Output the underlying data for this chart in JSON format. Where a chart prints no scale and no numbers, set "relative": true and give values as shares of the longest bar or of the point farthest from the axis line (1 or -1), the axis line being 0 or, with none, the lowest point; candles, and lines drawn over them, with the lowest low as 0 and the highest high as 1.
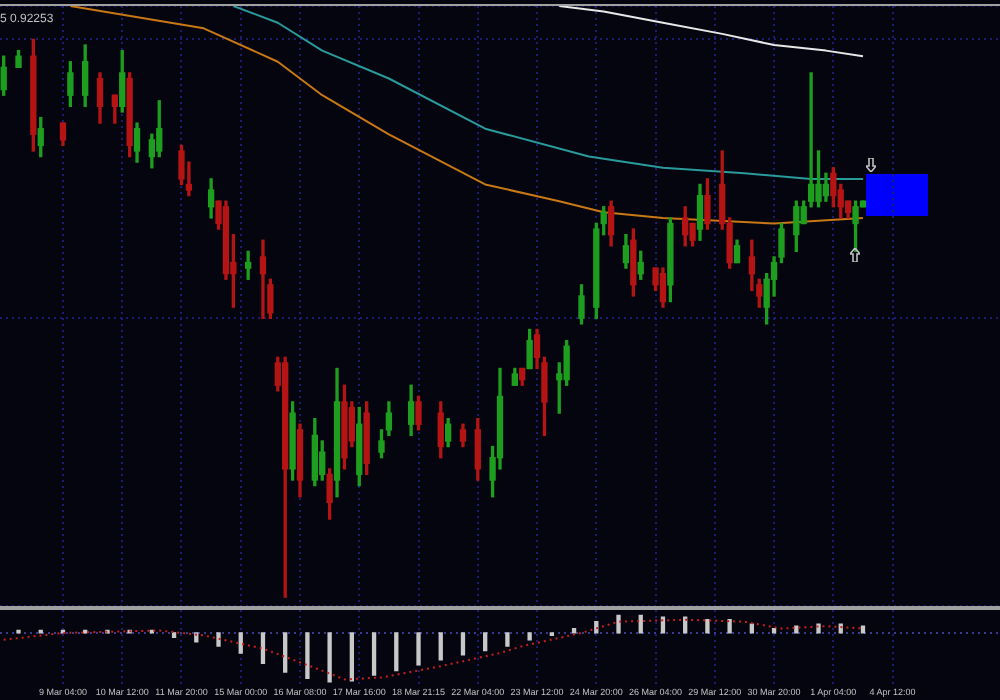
{
  "chart_data": [
    {
      "type": "candlestick",
      "relative": true,
      "tick_labels": false,
      "grid": true,
      "annotations": [
        "5 0.92253"
      ],
      "categories": [
        null,
        null,
        null,
        null,
        null,
        null,
        null,
        null,
        null,
        null,
        null,
        null,
        null,
        null,
        null,
        null,
        null,
        null,
        null,
        null,
        null,
        null,
        null,
        null,
        null,
        null,
        null,
        null,
        null,
        null,
        null,
        null,
        null,
        null,
        null,
        null,
        null,
        null,
        null,
        null,
        null,
        null,
        null,
        null,
        null,
        null,
        null,
        null,
        null,
        null,
        null,
        null,
        null,
        null,
        null,
        null,
        null,
        null,
        null,
        null,
        null,
        null,
        null,
        null,
        null,
        null,
        null,
        null,
        null,
        null,
        null,
        null,
        null,
        null,
        null,
        null,
        null,
        null,
        null,
        null,
        null,
        null,
        null,
        null,
        null,
        null,
        null,
        null,
        null,
        null,
        null,
        null,
        null,
        null,
        null,
        null,
        null,
        null,
        null,
        null,
        null,
        null,
        null,
        null,
        null,
        null,
        null,
        null,
        null,
        null,
        null,
        null,
        null,
        null,
        null,
        null,
        null,
        null,
        null,
        null,
        null,
        null,
        null,
        null,
        null,
        null,
        null,
        null,
        null,
        null,
        null,
        null,
        null,
        null,
        null
      ],
      "ohlc": [
        [
          0.91,
          0.97,
          0.9,
          0.95
        ],
        null,
        [
          0.95,
          0.98,
          0.95,
          0.97
        ],
        null,
        [
          0.97,
          1,
          0.8,
          0.83
        ],
        [
          0.81,
          0.86,
          0.79,
          0.84
        ],
        null,
        null,
        [
          0.85,
          0.85,
          0.81,
          0.82
        ],
        [
          0.9,
          0.96,
          0.88,
          0.94
        ],
        null,
        [
          0.9,
          0.99,
          0.88,
          0.96
        ],
        null,
        [
          0.93,
          0.94,
          0.85,
          0.88
        ],
        null,
        [
          0.9,
          0.9,
          0.85,
          0.88
        ],
        [
          0.88,
          0.98,
          0.87,
          0.94
        ],
        [
          0.93,
          0.94,
          0.79,
          0.81
        ],
        [
          0.8,
          0.85,
          0.78,
          0.84
        ],
        null,
        [
          0.79,
          0.83,
          0.77,
          0.82
        ],
        [
          0.8,
          0.89,
          0.79,
          0.84
        ],
        null,
        null,
        [
          0.8,
          0.81,
          0.74,
          0.75
        ],
        [
          0.74,
          0.78,
          0.72,
          0.73
        ],
        null,
        null,
        [
          0.7,
          0.75,
          0.68,
          0.73
        ],
        [
          0.71,
          0.71,
          0.66,
          0.67
        ],
        [
          0.7,
          0.71,
          0.57,
          0.58
        ],
        [
          0.6,
          0.65,
          0.52,
          0.58
        ],
        null,
        [
          0.59,
          0.62,
          0.57,
          0.6
        ],
        null,
        [
          0.61,
          0.64,
          0.5,
          0.58
        ],
        [
          0.56,
          0.57,
          0.5,
          0.51
        ],
        [
          0.42,
          0.43,
          0.37,
          0.38
        ],
        [
          0.42,
          0.43,
          0,
          0.23
        ],
        [
          0.23,
          0.35,
          0.21,
          0.33
        ],
        [
          0.3,
          0.31,
          0.18,
          0.21
        ],
        null,
        [
          0.21,
          0.32,
          0.2,
          0.29
        ],
        [
          0.22,
          0.28,
          0.21,
          0.26
        ],
        [
          0.22,
          0.23,
          0.14,
          0.17
        ],
        [
          0.21,
          0.41,
          0.18,
          0.35
        ],
        [
          0.35,
          0.38,
          0.23,
          0.25
        ],
        [
          0.34,
          0.35,
          0.27,
          0.28
        ],
        [
          0.22,
          0.34,
          0.2,
          0.31
        ],
        [
          0.33,
          0.35,
          0.22,
          0.24
        ],
        null,
        [
          0.26,
          0.3,
          0.25,
          0.28
        ],
        [
          0.3,
          0.35,
          0.29,
          0.33
        ],
        null,
        null,
        [
          0.31,
          0.38,
          0.29,
          0.35
        ],
        [
          0.35,
          0.36,
          0.3,
          0.31
        ],
        null,
        null,
        [
          0.33,
          0.35,
          0.25,
          0.27
        ],
        [
          0.28,
          0.32,
          0.27,
          0.31
        ],
        null,
        [
          0.3,
          0.31,
          0.27,
          0.28
        ],
        null,
        [
          0.3,
          0.32,
          0.21,
          0.23
        ],
        null,
        [
          0.21,
          0.27,
          0.18,
          0.25
        ],
        [
          0.25,
          0.41,
          0.23,
          0.36
        ],
        null,
        [
          0.38,
          0.41,
          0.38,
          0.4
        ],
        [
          0.41,
          0.41,
          0.38,
          0.39
        ],
        [
          0.41,
          0.48,
          0.41,
          0.46
        ],
        [
          0.47,
          0.48,
          0.41,
          0.43
        ],
        [
          0.42,
          0.43,
          0.29,
          0.35
        ],
        null,
        [
          0.39,
          0.42,
          0.33,
          0.4
        ],
        [
          0.39,
          0.46,
          0.38,
          0.45
        ],
        null,
        [
          0.5,
          0.56,
          0.49,
          0.54
        ],
        null,
        [
          0.52,
          0.67,
          0.5,
          0.66
        ],
        [
          0.67,
          0.7,
          0.65,
          0.69
        ],
        [
          0.7,
          0.71,
          0.63,
          0.65
        ],
        null,
        [
          0.6,
          0.65,
          0.59,
          0.63
        ],
        [
          0.64,
          0.66,
          0.54,
          0.56
        ],
        [
          0.58,
          0.62,
          0.57,
          0.6
        ],
        null,
        [
          0.59,
          0.59,
          0.55,
          0.56
        ],
        [
          0.58,
          0.59,
          0.52,
          0.53
        ],
        [
          0.56,
          0.68,
          0.53,
          0.67
        ],
        null,
        [
          0.68,
          0.7,
          0.63,
          0.65
        ],
        [
          0.67,
          0.67,
          0.63,
          0.64
        ],
        [
          0.66,
          0.74,
          0.64,
          0.72
        ],
        [
          0.72,
          0.75,
          0.66,
          0.67
        ],
        null,
        [
          0.74,
          0.8,
          0.66,
          0.67
        ],
        [
          0.67,
          0.68,
          0.59,
          0.6
        ],
        [
          0.6,
          0.64,
          0.6,
          0.63
        ],
        null,
        [
          0.61,
          0.64,
          0.55,
          0.58
        ],
        [
          0.56,
          0.57,
          0.52,
          0.54
        ],
        [
          0.52,
          0.58,
          0.49,
          0.57
        ],
        [
          0.57,
          0.61,
          0.54,
          0.6
        ],
        [
          0.61,
          0.67,
          0.6,
          0.66
        ],
        null,
        [
          0.65,
          0.71,
          0.62,
          0.7
        ],
        [
          0.67,
          0.71,
          0.67,
          0.7
        ],
        [
          0.71,
          0.94,
          0.7,
          0.74
        ],
        [
          0.71,
          0.8,
          0.7,
          0.74
        ],
        [
          0.72,
          0.76,
          0.71,
          0.74
        ],
        [
          0.76,
          0.77,
          0.7,
          0.72
        ],
        [
          0.73,
          0.74,
          0.68,
          0.7
        ],
        [
          0.71,
          0.71,
          0.68,
          0.69
        ],
        [
          0.67,
          0.71,
          0.62,
          0.7
        ],
        [
          0.7,
          0.71,
          0.7,
          0.71
        ],
        null,
        null,
        null,
        null,
        null,
        null,
        null,
        null,
        null,
        null,
        null,
        null,
        null,
        null,
        null,
        null,
        null,
        null
      ],
      "colors": [
        "#1e9e1e",
        null,
        "#1e9e1e",
        null,
        "#b41414",
        "#1e9e1e",
        null,
        null,
        "#b41414",
        "#1e9e1e",
        null,
        "#1e9e1e",
        null,
        "#b41414",
        null,
        "#b41414",
        "#1e9e1e",
        "#b41414",
        "#1e9e1e",
        null,
        "#1e9e1e",
        "#1e9e1e",
        null,
        null,
        "#b41414",
        "#b41414",
        null,
        null,
        "#1e9e1e",
        "#b41414",
        "#b41414",
        "#b41414",
        null,
        "#1e9e1e",
        null,
        "#b41414",
        "#b41414",
        "#b41414",
        "#b41414",
        "#1e9e1e",
        "#b41414",
        null,
        "#1e9e1e",
        "#1e9e1e",
        "#b41414",
        "#1e9e1e",
        "#b41414",
        "#b41414",
        "#1e9e1e",
        "#b41414",
        null,
        "#1e9e1e",
        "#1e9e1e",
        null,
        null,
        "#1e9e1e",
        "#b41414",
        null,
        null,
        "#b41414",
        "#1e9e1e",
        null,
        "#b41414",
        null,
        "#b41414",
        null,
        "#1e9e1e",
        "#1e9e1e",
        null,
        "#1e9e1e",
        "#b41414",
        "#1e9e1e",
        "#b41414",
        "#b41414",
        null,
        "#1e9e1e",
        "#1e9e1e",
        null,
        "#1e9e1e",
        null,
        "#1e9e1e",
        "#1e9e1e",
        "#b41414",
        null,
        "#1e9e1e",
        "#b41414",
        "#1e9e1e",
        null,
        "#b41414",
        "#b41414",
        "#1e9e1e",
        null,
        "#b41414",
        "#b41414",
        "#1e9e1e",
        "#b41414",
        null,
        "#b41414",
        "#b41414",
        "#1e9e1e",
        null,
        "#b41414",
        "#b41414",
        "#1e9e1e",
        "#1e9e1e",
        "#1e9e1e",
        null,
        "#1e9e1e",
        "#1e9e1e",
        "#1e9e1e",
        "#1e9e1e",
        "#1e9e1e",
        "#b41414",
        "#b41414",
        "#b41414",
        "#1e9e1e",
        "#1e9e1e",
        null,
        null,
        null,
        null,
        null,
        null,
        null,
        null,
        null,
        null,
        null,
        null,
        null,
        null,
        null,
        null,
        null,
        null
      ],
      "series": [
        {
          "type": "line",
          "color": "#e8e8e8",
          "values": [
            null,
            null,
            null,
            null,
            null,
            null,
            null,
            null,
            null,
            null,
            null,
            null,
            null,
            null,
            null,
            null,
            null,
            null,
            null,
            null,
            null,
            null,
            null,
            null,
            null,
            null,
            null,
            null,
            null,
            null,
            null,
            null,
            null,
            null,
            null,
            null,
            null,
            null,
            null,
            null,
            null,
            null,
            null,
            null,
            null,
            null,
            null,
            null,
            null,
            null,
            null,
            null,
            null,
            null,
            null,
            null,
            null,
            null,
            null,
            null,
            null,
            null,
            null,
            null,
            null,
            null,
            null,
            null,
            null,
            null,
            null,
            null,
            null,
            null,
            null,
            1.06,
            null,
            null,
            null,
            null,
            null,
            1.05,
            null,
            null,
            null,
            null,
            null,
            null,
            null,
            1.03,
            null,
            null,
            null,
            null,
            null,
            null,
            null,
            1.01,
            null,
            null,
            null,
            null,
            null,
            null,
            0.99,
            null,
            null,
            null,
            null,
            null,
            null,
            0.98,
            null,
            null,
            null,
            null,
            0.97,
            null,
            null,
            null,
            null,
            null,
            null,
            null,
            null,
            null,
            null,
            null,
            null,
            null,
            null,
            null,
            null,
            null,
            null
          ]
        },
        {
          "type": "line",
          "color": "#2a9a9a",
          "values": [
            null,
            null,
            null,
            null,
            null,
            null,
            null,
            null,
            null,
            null,
            null,
            null,
            null,
            null,
            null,
            null,
            null,
            null,
            null,
            null,
            null,
            null,
            null,
            null,
            null,
            null,
            null,
            null,
            null,
            null,
            null,
            1.06,
            null,
            null,
            null,
            null,
            null,
            1.03,
            null,
            null,
            null,
            null,
            null,
            0.98,
            null,
            null,
            null,
            null,
            null,
            null,
            null,
            null,
            0.93,
            null,
            null,
            null,
            null,
            null,
            null,
            null,
            null,
            null,
            null,
            null,
            null,
            0.84,
            null,
            null,
            null,
            null,
            null,
            null,
            null,
            null,
            null,
            null,
            null,
            null,
            null,
            0.79,
            null,
            null,
            null,
            null,
            null,
            null,
            null,
            null,
            null,
            0.77,
            null,
            null,
            null,
            null,
            null,
            null,
            null,
            null,
            null,
            null,
            0.76,
            null,
            null,
            null,
            null,
            null,
            null,
            null,
            null,
            0.75,
            null,
            null,
            null,
            null,
            null,
            null,
            0.75,
            null,
            null,
            null,
            null,
            null,
            null,
            null,
            null,
            null,
            null,
            null,
            null,
            null,
            null,
            null,
            null,
            null,
            null
          ]
        },
        {
          "type": "line",
          "color": "#c87814",
          "values": [
            null,
            null,
            null,
            null,
            null,
            null,
            null,
            null,
            null,
            1.06,
            null,
            null,
            null,
            null,
            null,
            null,
            null,
            null,
            null,
            null,
            null,
            null,
            null,
            null,
            null,
            null,
            null,
            1.02,
            null,
            null,
            null,
            null,
            null,
            null,
            null,
            null,
            null,
            0.96,
            null,
            null,
            null,
            null,
            null,
            0.9,
            null,
            null,
            null,
            null,
            null,
            null,
            null,
            null,
            0.83,
            null,
            null,
            null,
            null,
            null,
            null,
            null,
            null,
            null,
            null,
            null,
            null,
            0.74,
            null,
            null,
            null,
            null,
            null,
            null,
            null,
            null,
            null,
            0.71,
            null,
            null,
            null,
            null,
            null,
            0.69,
            null,
            null,
            null,
            null,
            null,
            null,
            null,
            0.68,
            null,
            null,
            null,
            null,
            null,
            null,
            null,
            null,
            null,
            null,
            null,
            null,
            null,
            null,
            0.67,
            null,
            null,
            null,
            null,
            null,
            null,
            null,
            null,
            null,
            null,
            null,
            0.68,
            null,
            null,
            null,
            null,
            null,
            null,
            null,
            null,
            null,
            null,
            null,
            null,
            null,
            null,
            null,
            null,
            null,
            null
          ]
        }
      ]
    },
    {
      "type": "bar",
      "relative": true,
      "tick_labels": "x",
      "grid": "x",
      "ref_lines": [
        {
          "axis": "y",
          "value": 0,
          "color": "#3a3a90",
          "line_style": "dotted"
        }
      ],
      "categories": [
        null,
        null,
        null,
        null,
        null,
        null,
        null,
        null,
        "9 Mar 04:00",
        null,
        null,
        null,
        null,
        null,
        null,
        null,
        "10 Mar 12:00",
        null,
        null,
        null,
        null,
        null,
        null,
        null,
        "11 Mar 20:00",
        null,
        null,
        null,
        null,
        null,
        null,
        null,
        "15 Mar 00:00",
        null,
        null,
        null,
        null,
        null,
        null,
        null,
        "16 Mar 08:00",
        null,
        null,
        null,
        null,
        null,
        null,
        null,
        "17 Mar 16:00",
        null,
        null,
        null,
        null,
        null,
        null,
        null,
        "18 Mar 21:15",
        null,
        null,
        null,
        null,
        null,
        null,
        null,
        "22 Mar 04:00",
        null,
        null,
        null,
        null,
        null,
        null,
        null,
        "23 Mar 12:00",
        null,
        null,
        null,
        null,
        null,
        null,
        null,
        "24 Mar 20:00",
        null,
        null,
        null,
        null,
        null,
        null,
        null,
        "26 Mar 04:00",
        null,
        null,
        null,
        null,
        null,
        null,
        null,
        "29 Mar 12:00",
        null,
        null,
        null,
        null,
        null,
        null,
        null,
        "30 Mar 20:00",
        null,
        null,
        null,
        null,
        null,
        null,
        null,
        "1 Apr 04:00",
        null,
        null,
        null,
        null,
        null,
        null,
        null,
        "4 Apr 12:00",
        null,
        null,
        null,
        null,
        null,
        null,
        null,
        null,
        null,
        null,
        null,
        null,
        null,
        null
      ],
      "series": [
        {
          "type": "bar",
          "color": "#c8c8c8",
          "values": [
            null,
            null,
            0.05,
            null,
            null,
            0.05,
            null,
            null,
            0.05,
            null,
            null,
            0.05,
            null,
            null,
            0.05,
            null,
            null,
            0.05,
            null,
            null,
            0.05,
            null,
            null,
            -0.09,
            null,
            null,
            -0.18,
            null,
            null,
            -0.27,
            null,
            null,
            -0.41,
            null,
            null,
            -0.62,
            null,
            null,
            -0.8,
            null,
            null,
            -0.93,
            null,
            null,
            -1,
            null,
            null,
            -0.98,
            null,
            null,
            -0.86,
            null,
            null,
            -0.77,
            null,
            null,
            -0.65,
            null,
            null,
            -0.55,
            null,
            null,
            -0.45,
            null,
            null,
            -0.36,
            null,
            null,
            -0.27,
            null,
            null,
            -0.14,
            null,
            null,
            -0.05,
            null,
            null,
            0.09,
            null,
            null,
            0.23,
            null,
            null,
            0.36,
            null,
            null,
            0.36,
            null,
            null,
            0.32,
            null,
            null,
            0.32,
            null,
            null,
            0.27,
            null,
            null,
            0.27,
            null,
            null,
            0.18,
            null,
            null,
            0.09,
            null,
            null,
            0.14,
            null,
            null,
            0.18,
            null,
            null,
            0.18,
            null,
            null,
            0.14,
            null,
            null,
            null,
            null,
            null,
            null,
            null,
            null,
            null,
            null,
            null,
            null,
            null,
            null,
            null,
            null,
            null,
            null
          ]
        },
        {
          "type": "line",
          "color": "#c81e1e",
          "line_style": "dotted",
          "values": [
            -0.14,
            null,
            null,
            null,
            null,
            null,
            null,
            null,
            0,
            null,
            null,
            null,
            null,
            null,
            null,
            null,
            null,
            null,
            null,
            null,
            null,
            0.05,
            null,
            null,
            null,
            null,
            null,
            -0.05,
            null,
            null,
            null,
            null,
            null,
            null,
            null,
            -0.32,
            null,
            null,
            null,
            null,
            null,
            null,
            null,
            -0.77,
            null,
            null,
            -0.95,
            null,
            null,
            null,
            null,
            -0.91,
            null,
            null,
            null,
            null,
            null,
            null,
            null,
            -0.68,
            null,
            null,
            null,
            null,
            null,
            null,
            null,
            -0.41,
            null,
            null,
            -0.27,
            null,
            null,
            null,
            null,
            null,
            null,
            null,
            0,
            null,
            null,
            null,
            null,
            0.23,
            null,
            null,
            null,
            null,
            null,
            null,
            null,
            null,
            0.27,
            null,
            null,
            null,
            null,
            null,
            null,
            null,
            0.23,
            null,
            null,
            null,
            null,
            0.09,
            null,
            null,
            null,
            null,
            null,
            0.14,
            null,
            null,
            null,
            null,
            0.09,
            null,
            null,
            null,
            null,
            null,
            null,
            null,
            null,
            null,
            null,
            null,
            null,
            null,
            null,
            null,
            null,
            null,
            null
          ]
        }
      ]
    }
  ]
}
